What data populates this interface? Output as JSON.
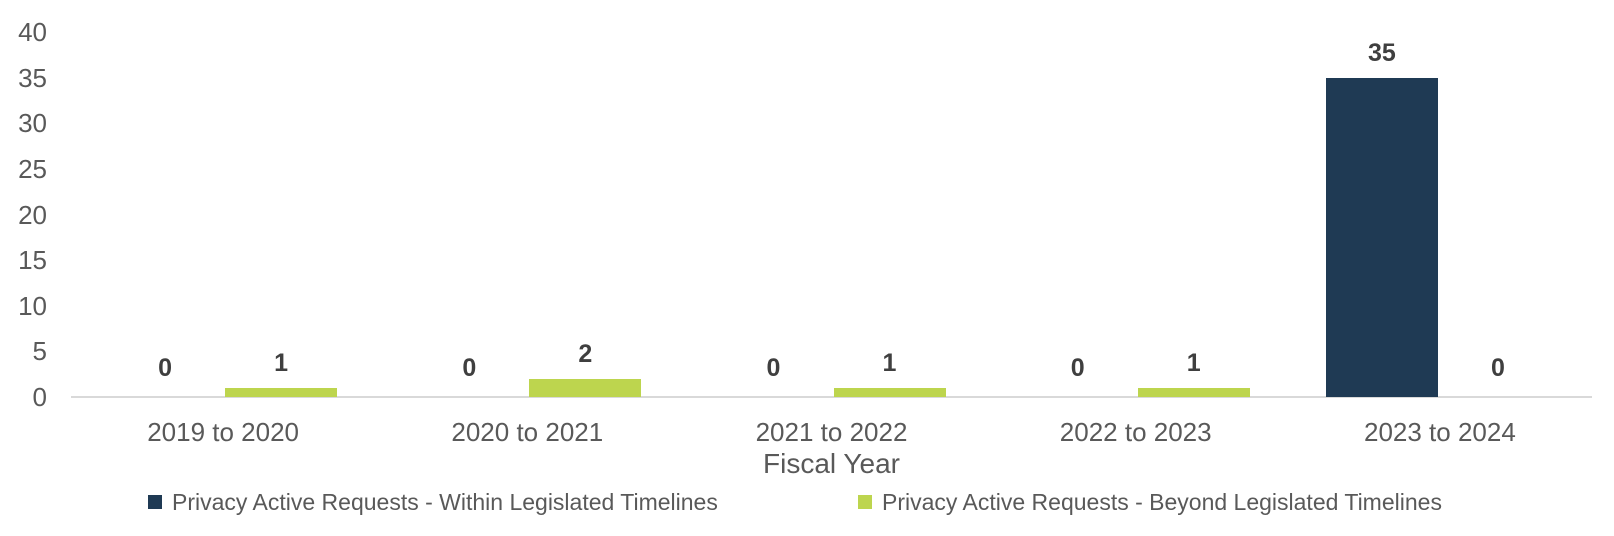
{
  "chart_data": {
    "type": "bar",
    "title": "",
    "xlabel": "Fiscal Year",
    "ylabel": "",
    "ylim": [
      0,
      40
    ],
    "yticks": [
      0,
      5,
      10,
      15,
      20,
      25,
      30,
      35,
      40
    ],
    "grid": false,
    "legend_position": "bottom",
    "data_labels": true,
    "categories": [
      "2019 to 2020",
      "2020 to 2021",
      "2021 to 2022",
      "2022 to 2023",
      "2023 to 2024"
    ],
    "series": [
      {
        "name": "Privacy Active Requests - Within Legislated Timelines",
        "color": "#1F3A54",
        "values": [
          0,
          0,
          0,
          0,
          35
        ]
      },
      {
        "name": "Privacy Active Requests - Beyond Legislated Timelines",
        "color": "#BDD54E",
        "values": [
          1,
          2,
          1,
          1,
          0
        ]
      }
    ]
  },
  "colors": {
    "background": "#FFFFFF",
    "axis_text": "#595959",
    "data_label_text": "#3F3F3F",
    "axis_line": "#D9D9D9"
  }
}
